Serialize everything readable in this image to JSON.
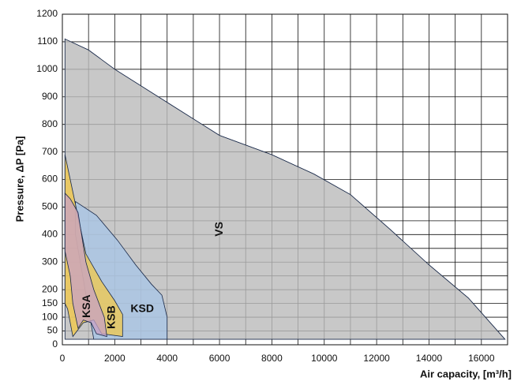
{
  "chart_data": {
    "type": "area",
    "x_label": "Air capacity, [m³/h]",
    "y_label": "Pressure, ΔP [Pa]",
    "xlim": [
      0,
      17000
    ],
    "ylim": [
      0,
      1200
    ],
    "xticks": [
      0,
      2000,
      4000,
      6000,
      8000,
      10000,
      12000,
      14000,
      16000
    ],
    "xgrid": [
      1000,
      3000,
      5000,
      7000,
      9000,
      11000,
      13000,
      15000,
      17000
    ],
    "yticks": [
      0,
      50,
      100,
      150,
      200,
      300,
      400,
      500,
      600,
      700,
      800,
      900,
      1000,
      1100,
      1200
    ],
    "ygrid": [
      250,
      350,
      450
    ],
    "grid": true,
    "series": [
      {
        "name": "VS",
        "color": "#c8c8c8",
        "label_at": [
          6000,
          420
        ],
        "x": [
          100,
          1000,
          2000,
          4000,
          6000,
          8000,
          9600,
          11000,
          12500,
          14000,
          15500,
          16900,
          100
        ],
        "y": [
          1110,
          1070,
          1000,
          880,
          760,
          690,
          620,
          545,
          420,
          290,
          170,
          20,
          20
        ]
      },
      {
        "name": "KSD",
        "color": "#a9c6e6",
        "label_at": [
          3050,
          130
        ],
        "x": [
          500,
          1300,
          2100,
          2800,
          3400,
          3800,
          4000,
          4000,
          1200,
          500
        ],
        "y": [
          520,
          470,
          380,
          290,
          220,
          180,
          100,
          20,
          20,
          400
        ]
      },
      {
        "name": "KSB",
        "color": "#f0c84e",
        "label_at": [
          1900,
          100
        ],
        "x": [
          100,
          500,
          900,
          1500,
          2000,
          2300,
          2300,
          1500,
          1200,
          800,
          400,
          200,
          100
        ],
        "y": [
          690,
          510,
          330,
          230,
          160,
          110,
          30,
          40,
          90,
          80,
          30,
          130,
          150
        ]
      },
      {
        "name": "KSA",
        "color": "#c8a2c4",
        "label_at": [
          950,
          140
        ],
        "x": [
          100,
          300,
          600,
          900,
          1200,
          1600,
          1700,
          1300,
          1100,
          800,
          600,
          400,
          300,
          100
        ],
        "y": [
          550,
          530,
          480,
          300,
          200,
          100,
          30,
          40,
          80,
          90,
          60,
          150,
          250,
          340
        ]
      }
    ]
  }
}
